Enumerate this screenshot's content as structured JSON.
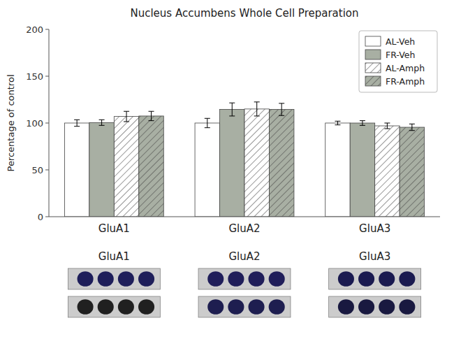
{
  "chart_data": {
    "type": "bar",
    "title": "Nucleus Accumbens Whole Cell Preparation",
    "ylabel": "Percentage of control",
    "categories": [
      "GluA1",
      "GluA2",
      "GluA3"
    ],
    "series": [
      {
        "name": "AL-Veh",
        "color": "white",
        "values": [
          100.0,
          100.0,
          100.0
        ],
        "errors": [
          3.5,
          5.0,
          2.0
        ]
      },
      {
        "name": "FR-Veh",
        "color": "#a8afa3",
        "values": [
          100.5,
          114.5,
          100.0
        ],
        "errors": [
          3.0,
          7.0,
          2.5
        ]
      },
      {
        "name": "AL-Amph",
        "color": "white",
        "line_style": "hatch",
        "values": [
          107.0,
          115.0,
          97.0
        ],
        "errors": [
          5.5,
          7.5,
          3.0
        ]
      },
      {
        "name": "FR-Amph",
        "color": "#a8afa3",
        "line_style": "hatch",
        "values": [
          107.5,
          114.5,
          95.5
        ],
        "errors": [
          5.0,
          6.5,
          3.5
        ]
      }
    ],
    "ylim": [
      0,
      200
    ],
    "yticks": [
      0,
      50,
      100,
      150,
      200
    ],
    "grid": false,
    "legend": "upper right"
  }
}
